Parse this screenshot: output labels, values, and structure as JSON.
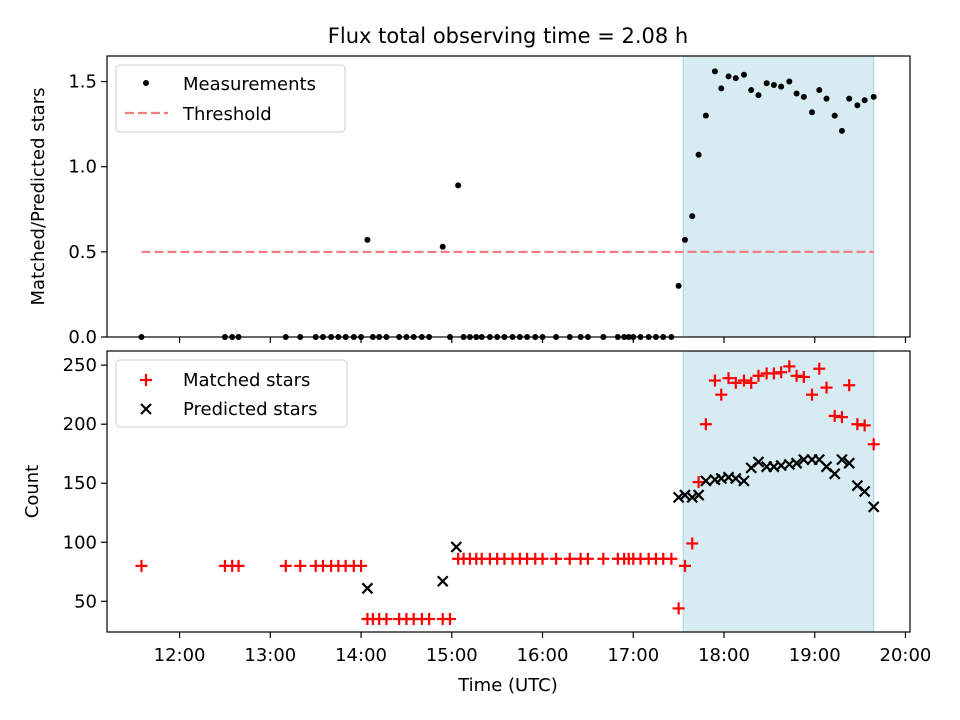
{
  "chart_data": [
    {
      "type": "scatter",
      "title": "Flux total observing time = 2.08 h",
      "ylabel": "Matched/Predicted stars",
      "xlim": [
        11.2,
        20.05
      ],
      "ylim": [
        0,
        1.65
      ],
      "yticks": [
        0.0,
        0.5,
        1.0,
        1.5
      ],
      "ytick_labels": [
        "0.0",
        "0.5",
        "1.0",
        "1.5"
      ],
      "highlight_span": [
        17.55,
        19.65
      ],
      "legend": [
        {
          "label": "Measurements",
          "marker": "dot",
          "color": "#000000"
        },
        {
          "label": "Threshold",
          "marker": "dashed-line",
          "color": "#f08080"
        }
      ],
      "threshold": {
        "value": 0.5,
        "x_range": [
          11.58,
          19.65
        ]
      },
      "series": [
        {
          "name": "Measurements",
          "x": [
            11.58,
            12.5,
            12.58,
            12.65,
            13.17,
            13.33,
            13.5,
            13.58,
            13.67,
            13.75,
            13.83,
            13.92,
            14.0,
            14.07,
            14.13,
            14.2,
            14.28,
            14.42,
            14.5,
            14.58,
            14.67,
            14.75,
            14.9,
            14.98,
            15.07,
            15.13,
            15.2,
            15.27,
            15.33,
            15.42,
            15.5,
            15.58,
            15.67,
            15.75,
            15.83,
            15.92,
            16.0,
            16.15,
            16.3,
            16.42,
            16.5,
            16.67,
            16.83,
            16.9,
            16.95,
            17.0,
            17.08,
            17.17,
            17.25,
            17.33,
            17.42,
            17.5,
            17.57,
            17.65,
            17.72,
            17.8,
            17.9,
            17.97,
            18.05,
            18.13,
            18.22,
            18.3,
            18.38,
            18.47,
            18.55,
            18.63,
            18.72,
            18.8,
            18.88,
            18.97,
            19.05,
            19.13,
            19.22,
            19.3,
            19.38,
            19.47,
            19.55,
            19.65
          ],
          "y": [
            0,
            0,
            0,
            0,
            0,
            0,
            0,
            0,
            0,
            0,
            0,
            0,
            0,
            0.57,
            0,
            0,
            0,
            0,
            0,
            0,
            0,
            0,
            0.53,
            0,
            0.89,
            0,
            0,
            0,
            0,
            0,
            0,
            0,
            0,
            0,
            0,
            0,
            0,
            0,
            0,
            0,
            0,
            0,
            0,
            0,
            0,
            0,
            0,
            0,
            0,
            0,
            0,
            0.3,
            0.57,
            0.71,
            1.07,
            1.3,
            1.56,
            1.46,
            1.53,
            1.52,
            1.54,
            1.45,
            1.42,
            1.49,
            1.48,
            1.47,
            1.5,
            1.43,
            1.41,
            1.32,
            1.45,
            1.4,
            1.3,
            1.21,
            1.4,
            1.36,
            1.39,
            1.41
          ]
        }
      ]
    },
    {
      "type": "scatter",
      "xlabel": "Time (UTC)",
      "ylabel": "Count",
      "xlim": [
        11.2,
        20.05
      ],
      "ylim": [
        24,
        262
      ],
      "yticks": [
        50,
        100,
        150,
        200,
        250
      ],
      "ytick_labels": [
        "50",
        "100",
        "150",
        "200",
        "250"
      ],
      "xticks": [
        12,
        13,
        14,
        15,
        16,
        17,
        18,
        19,
        20
      ],
      "xtick_labels": [
        "12:00",
        "13:00",
        "14:00",
        "15:00",
        "16:00",
        "17:00",
        "18:00",
        "19:00",
        "20:00"
      ],
      "highlight_span": [
        17.55,
        19.65
      ],
      "legend": [
        {
          "label": "Matched stars",
          "marker": "plus",
          "color": "#ff0000"
        },
        {
          "label": "Predicted stars",
          "marker": "x",
          "color": "#000000"
        }
      ],
      "series": [
        {
          "name": "Matched stars",
          "marker": "plus",
          "x": [
            11.58,
            12.5,
            12.58,
            12.65,
            13.17,
            13.33,
            13.5,
            13.58,
            13.67,
            13.75,
            13.83,
            13.92,
            14.0,
            14.07,
            14.13,
            14.2,
            14.28,
            14.42,
            14.5,
            14.58,
            14.67,
            14.75,
            14.9,
            14.98,
            15.07,
            15.13,
            15.2,
            15.27,
            15.33,
            15.42,
            15.5,
            15.58,
            15.67,
            15.75,
            15.83,
            15.92,
            16.0,
            16.15,
            16.3,
            16.42,
            16.5,
            16.67,
            16.83,
            16.9,
            16.95,
            17.0,
            17.08,
            17.17,
            17.25,
            17.33,
            17.42,
            17.5,
            17.57,
            17.65,
            17.72,
            17.8,
            17.9,
            17.97,
            18.05,
            18.13,
            18.22,
            18.3,
            18.38,
            18.47,
            18.55,
            18.63,
            18.72,
            18.8,
            18.88,
            18.97,
            19.05,
            19.13,
            19.22,
            19.3,
            19.38,
            19.47,
            19.55,
            19.65
          ],
          "y": [
            80,
            80,
            80,
            80,
            80,
            80,
            80,
            80,
            80,
            80,
            80,
            80,
            80,
            35,
            35,
            35,
            35,
            35,
            35,
            35,
            35,
            35,
            35,
            35,
            86,
            86,
            86,
            86,
            86,
            86,
            86,
            86,
            86,
            86,
            86,
            86,
            86,
            86,
            86,
            86,
            86,
            86,
            86,
            86,
            86,
            86,
            86,
            86,
            86,
            86,
            86,
            44,
            80,
            99,
            151,
            200,
            237,
            225,
            239,
            235,
            237,
            235,
            241,
            243,
            243,
            244,
            249,
            241,
            240,
            225,
            247,
            231,
            207,
            206,
            233,
            200,
            199,
            183
          ]
        },
        {
          "name": "Predicted stars",
          "marker": "x",
          "x": [
            14.07,
            14.9,
            15.05,
            17.5,
            17.57,
            17.65,
            17.72,
            17.8,
            17.9,
            17.97,
            18.05,
            18.13,
            18.22,
            18.3,
            18.38,
            18.47,
            18.55,
            18.63,
            18.72,
            18.8,
            18.88,
            18.97,
            19.05,
            19.13,
            19.22,
            19.3,
            19.38,
            19.47,
            19.55,
            19.65
          ],
          "y": [
            61,
            67,
            96,
            138,
            140,
            138,
            140,
            152,
            153,
            154,
            155,
            154,
            152,
            163,
            168,
            164,
            164,
            165,
            166,
            167,
            170,
            170,
            170,
            164,
            158,
            170,
            167,
            148,
            143,
            130
          ]
        }
      ]
    }
  ]
}
